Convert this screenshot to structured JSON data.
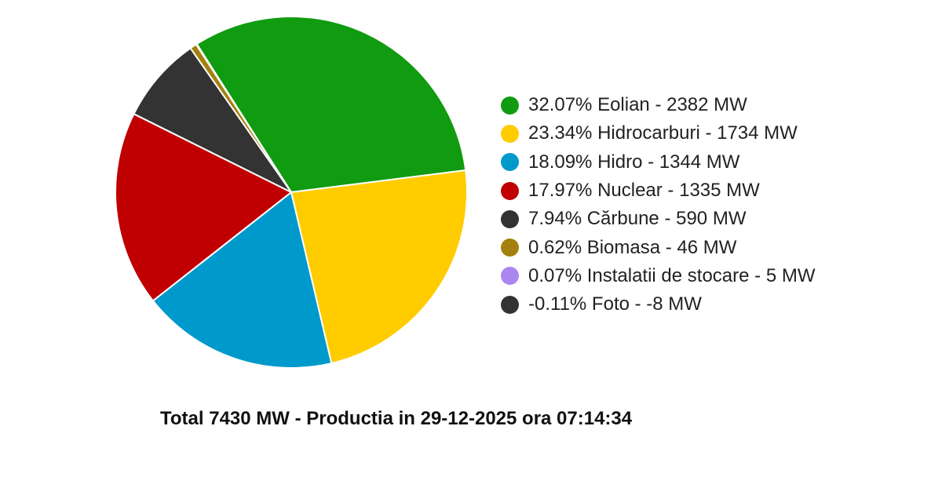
{
  "chart_data": {
    "type": "pie",
    "categories": [
      "Eolian",
      "Hidrocarburi",
      "Hidro",
      "Nuclear",
      "Cărbune",
      "Biomasa",
      "Instalatii de stocare",
      "Foto"
    ],
    "values": [
      2382,
      1734,
      1344,
      1335,
      590,
      46,
      5,
      -8
    ],
    "percentages": [
      32.07,
      23.34,
      18.09,
      17.97,
      7.94,
      0.62,
      0.07,
      -0.11
    ],
    "units": "MW",
    "colors": [
      "#109b10",
      "#ffcc00",
      "#0099cc",
      "#c00000",
      "#333333",
      "#a4800f",
      "#ab86f0",
      "#333333"
    ],
    "legend_labels": [
      "32.07% Eolian - 2382 MW",
      "23.34% Hidrocarburi - 1734 MW",
      "18.09% Hidro - 1344 MW",
      "17.97% Nuclear - 1335 MW",
      "7.94% Cărbune - 590 MW",
      "0.62% Biomasa - 46 MW",
      "0.07% Instalatii de stocare - 5 MW",
      "-0.11% Foto - -8 MW"
    ],
    "legend_placement": "right",
    "start_angle_deg": -32.5,
    "direction": "clockwise"
  },
  "footer": {
    "text": "Total 7430 MW - Productia in 29-12-2025 ora 07:14:34"
  }
}
